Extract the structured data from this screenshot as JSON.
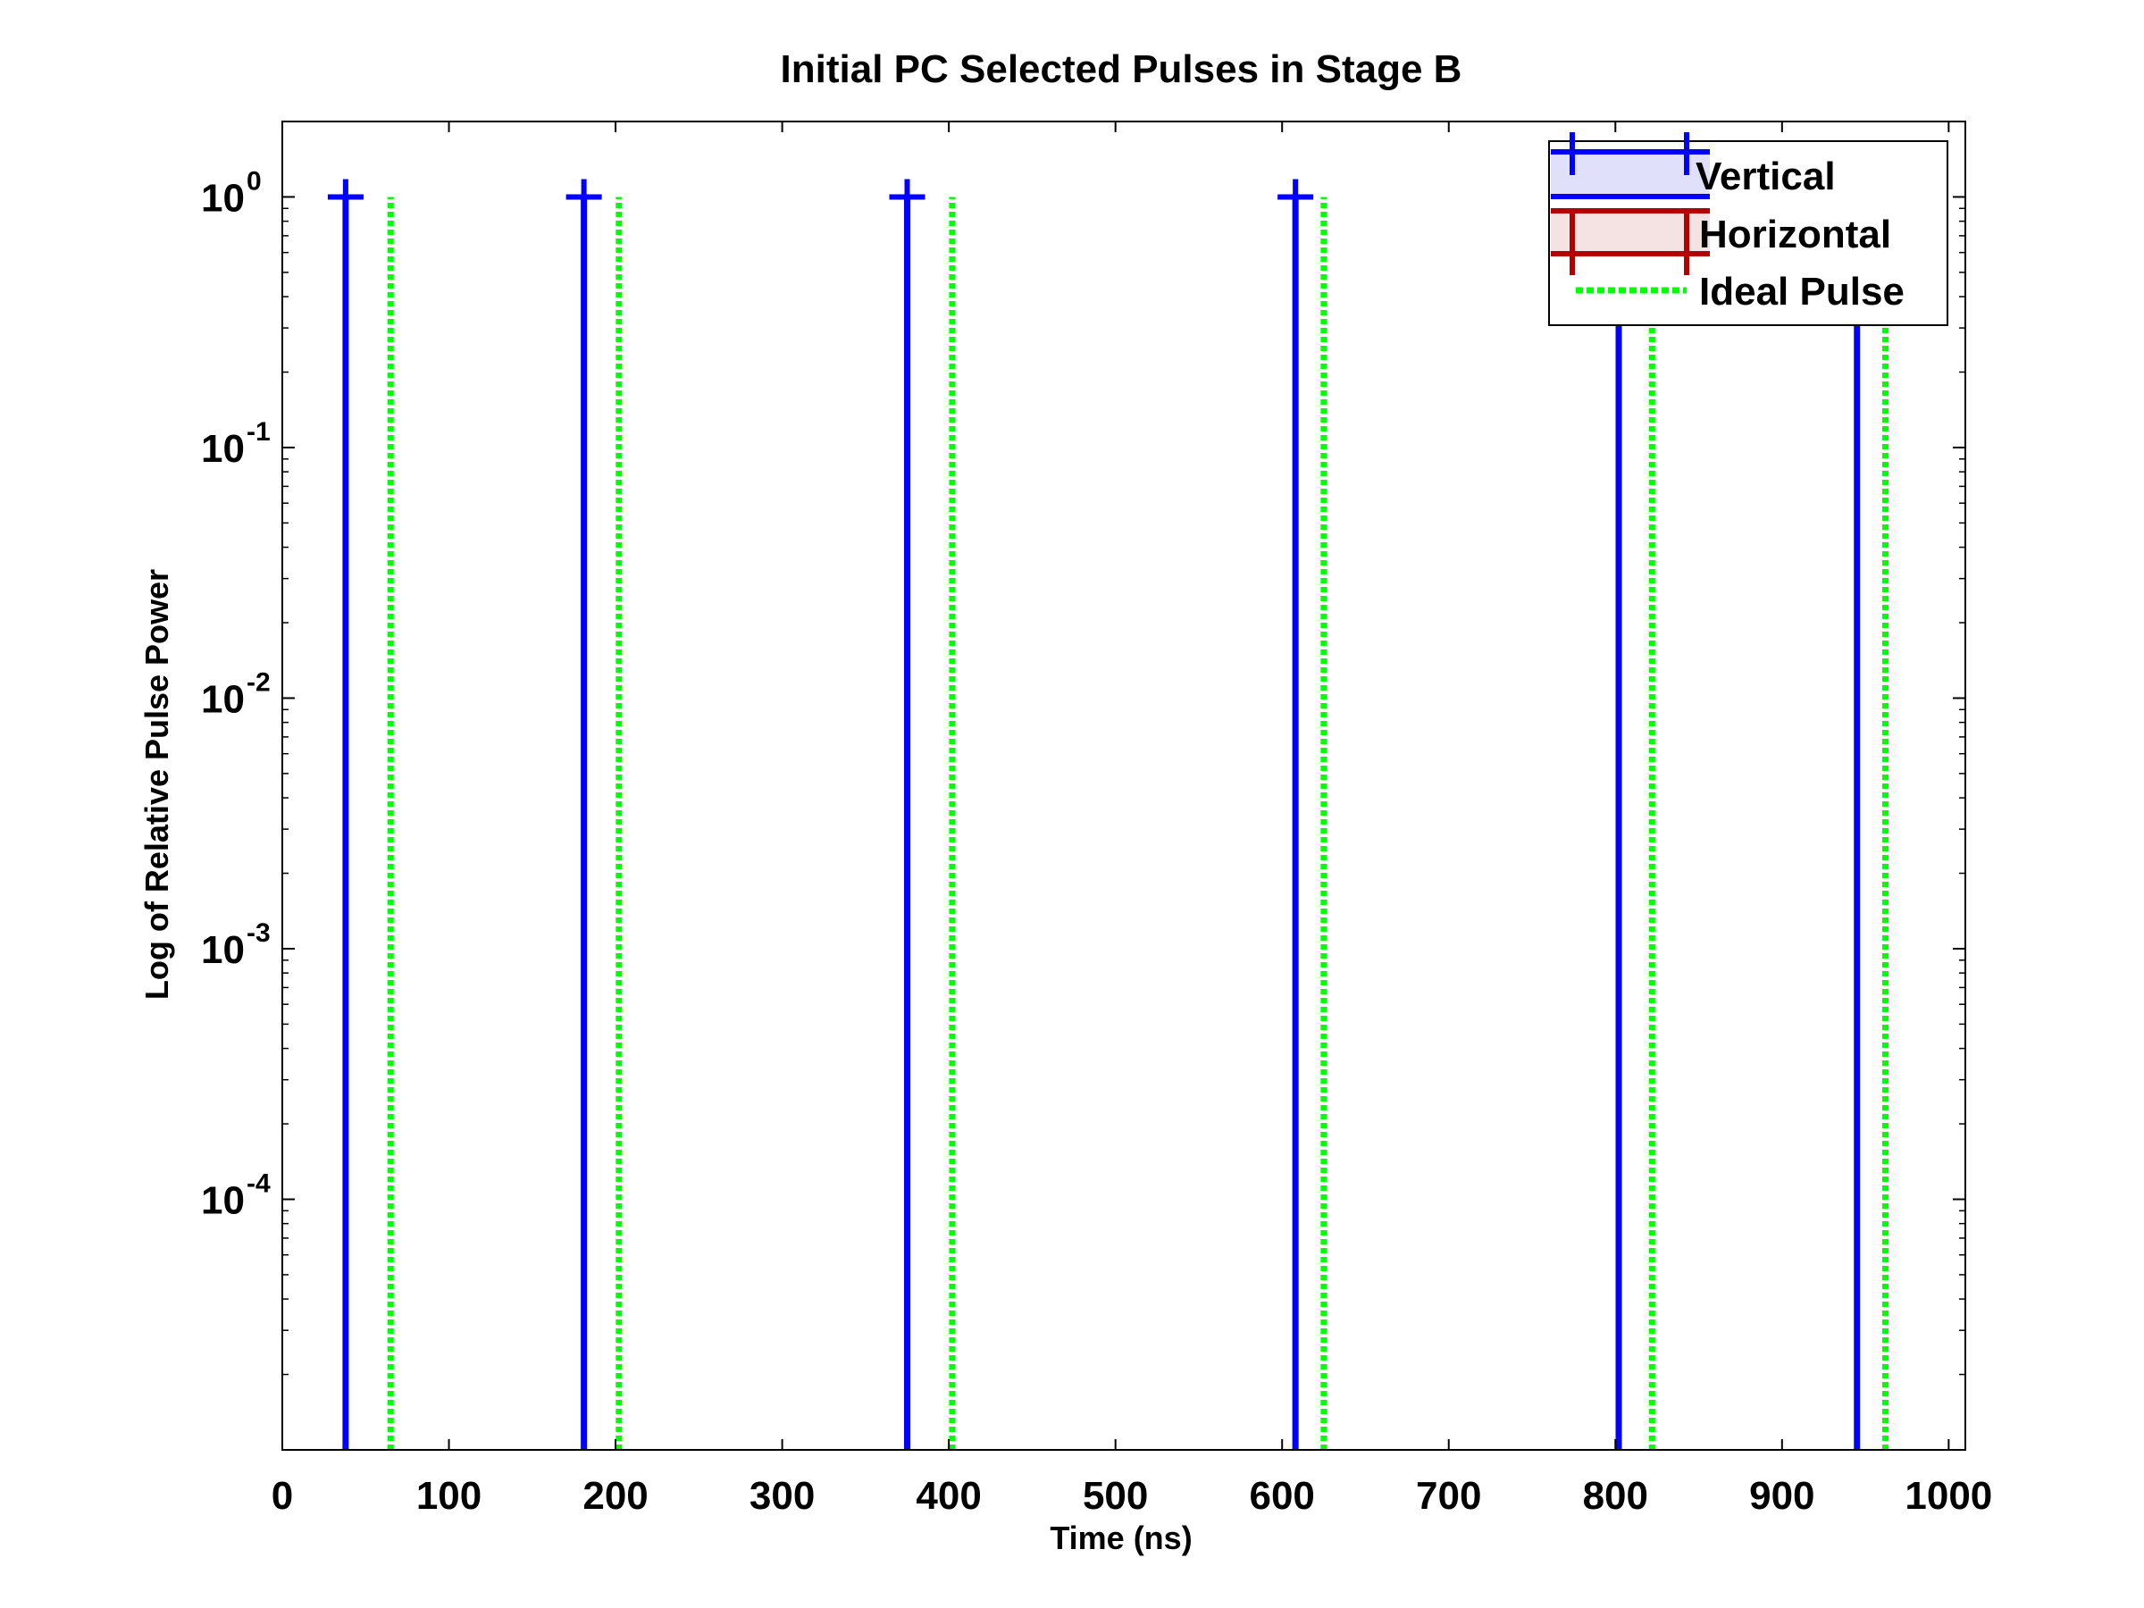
{
  "colors": {
    "background": "#ffffff",
    "axes": "#000000",
    "vertical": "#0000ff",
    "vertical_fill": "#e0e0fa",
    "horizontal": "#b30000",
    "horizontal_fill": "#f5e2e2",
    "ideal": "#00ff00"
  },
  "chart_data": {
    "type": "line",
    "title": "Initial PC Selected Pulses in Stage B",
    "xlabel": "Time (ns)",
    "ylabel": "Log of Relative Pulse Power",
    "xscale": "linear",
    "yscale": "log",
    "xlim": [
      0,
      1010
    ],
    "ylim": [
      1e-05,
      2
    ],
    "grid": false,
    "legend_position": "top-right",
    "xticks": [
      0,
      100,
      200,
      300,
      400,
      500,
      600,
      700,
      800,
      900,
      1000
    ],
    "xtick_labels": [
      "0",
      "100",
      "200",
      "300",
      "400",
      "500",
      "600",
      "700",
      "800",
      "900",
      "1000"
    ],
    "yticks": [
      {
        "value": 1,
        "base": "10",
        "exp": "0"
      },
      {
        "value": 0.1,
        "base": "10",
        "exp": "-1"
      },
      {
        "value": 0.01,
        "base": "10",
        "exp": "-2"
      },
      {
        "value": 0.001,
        "base": "10",
        "exp": "-3"
      },
      {
        "value": 0.0001,
        "base": "10",
        "exp": "-4"
      }
    ],
    "series": [
      {
        "name": "Vertical",
        "style": "solid-with-plus-markers",
        "pulses": [
          {
            "x": 38,
            "y": 1,
            "marker": true
          },
          {
            "x": 181,
            "y": 1,
            "marker": true
          },
          {
            "x": 375,
            "y": 1,
            "marker": true
          },
          {
            "x": 608,
            "y": 1,
            "marker": true
          },
          {
            "x": 802,
            "y": 1,
            "marker": false
          },
          {
            "x": 945,
            "y": 1,
            "marker": false
          }
        ]
      },
      {
        "name": "Horizontal",
        "style": "solid-with-plus-markers",
        "pulses": []
      },
      {
        "name": "Ideal Pulse",
        "style": "dotted",
        "pulses": [
          {
            "x": 65,
            "y": 1
          },
          {
            "x": 202,
            "y": 1
          },
          {
            "x": 402,
            "y": 1
          },
          {
            "x": 625,
            "y": 1
          },
          {
            "x": 822,
            "y": 1
          },
          {
            "x": 962,
            "y": 1
          }
        ]
      }
    ]
  }
}
